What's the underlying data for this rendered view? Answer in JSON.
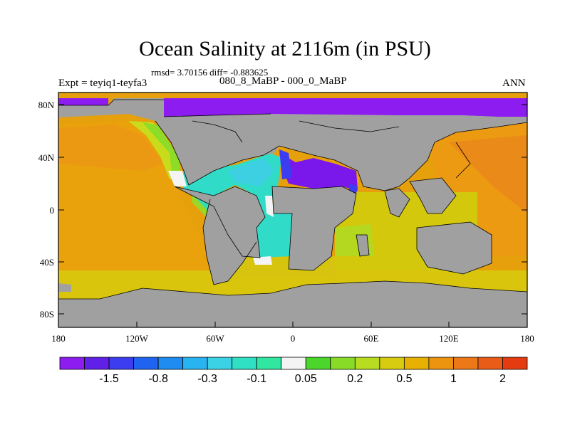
{
  "title": "Ocean Salinity at 2116m (in PSU)",
  "stats": "rmsd= 3.70156 diff= -0.883625",
  "expt": "Expt = teyiq1-teyfa3",
  "period": "080_8_MaBP - 000_0_MaBP",
  "season": "ANN",
  "axes": {
    "lat_ticks": [
      "80N",
      "40N",
      "0",
      "40S",
      "80S"
    ],
    "lon_ticks": [
      "180",
      "120W",
      "60W",
      "0",
      "60E",
      "120E",
      "180"
    ]
  },
  "colorbar": {
    "colors": [
      "#8c1cf0",
      "#6020e8",
      "#3c3cf0",
      "#1e64f0",
      "#1e8cf0",
      "#28b4f0",
      "#3cd2e6",
      "#30e0c4",
      "#30e6a0",
      "#f4f4f4",
      "#4ad62a",
      "#88dc28",
      "#b8dc20",
      "#d8cc10",
      "#e8b000",
      "#ec9410",
      "#ec7818",
      "#e85c18",
      "#e43c10"
    ],
    "labels": [
      "-1.5",
      "-0.8",
      "-0.3",
      "-0.1",
      "0.05",
      "0.2",
      "0.5",
      "1",
      "2"
    ]
  },
  "legend": {
    "land": "#a0a0a0"
  }
}
